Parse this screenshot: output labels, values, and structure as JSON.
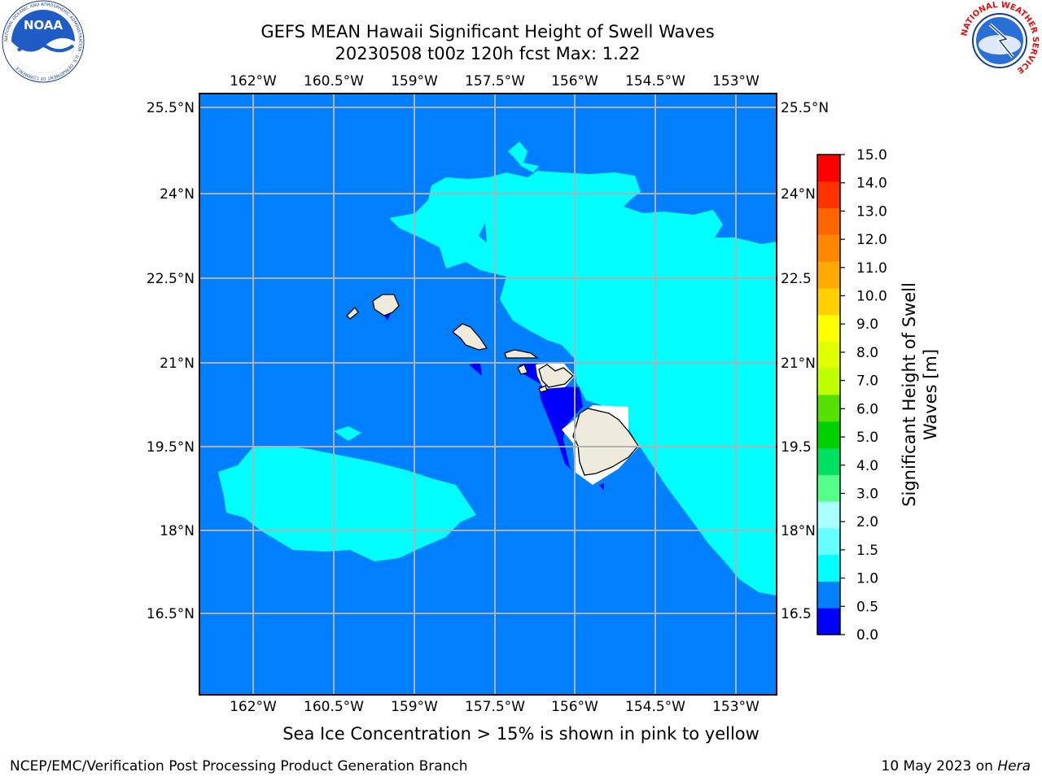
{
  "title_line1": "GEFS MEAN Hawaii Significant Height of Swell Waves",
  "title_line2": "20230508 t00z 120h fcst   Max: 1.22",
  "map": {
    "lon_ticks": [
      "162°W",
      "160.5°W",
      "159°W",
      "157.5°W",
      "156°W",
      "154.5°W",
      "153°W"
    ],
    "lat_ticks": [
      "25.5°N",
      "24°N",
      "22.5°N",
      "21°N",
      "19.5°N",
      "18°N",
      "16.5°N"
    ],
    "lat_ticks_right": [
      "25.5°N",
      "24°N",
      "22.5",
      "21°N",
      "19.5",
      "18°N",
      "16.5"
    ],
    "ocean_color": "#0080ff",
    "shade_colors": {
      "low": "#0000ff",
      "mid": "#0080ff",
      "high": "#00ffff"
    },
    "land_color": "#eeebdc"
  },
  "colorbar": {
    "label_line1": "Significant Height of Swell",
    "label_line2": "Waves [m]",
    "levels": [
      "0.0",
      "0.5",
      "1.0",
      "1.5",
      "2.0",
      "3.0",
      "4.0",
      "5.0",
      "6.0",
      "7.0",
      "8.0",
      "9.0",
      "10.0",
      "11.0",
      "12.0",
      "13.0",
      "14.0",
      "15.0"
    ],
    "colors": [
      "#0000ff",
      "#0080ff",
      "#00ffff",
      "#66ffff",
      "#aaffff",
      "#55ff88",
      "#00e060",
      "#00d000",
      "#55e000",
      "#c0ff00",
      "#e0ff00",
      "#ffff00",
      "#ffd000",
      "#ffaa00",
      "#ff8800",
      "#ff6600",
      "#ff3300",
      "#ff0000"
    ]
  },
  "note": "Sea Ice Concentration > 15% is shown in pink to yellow",
  "footer_left": "NCEP/EMC/Verification Post Processing Product Generation Branch",
  "footer_right_prefix": "10 May 2023 on ",
  "footer_right_system": "Hera",
  "logos": {
    "noaa": {
      "text": "NOAA",
      "ring_text": "NATIONAL OCEANIC AND ATMOSPHERIC ADMINISTRATION · U.S. DEPARTMENT OF COMMERCE"
    },
    "nws": {
      "ring_text": "NATIONAL WEATHER SERVICE"
    }
  }
}
